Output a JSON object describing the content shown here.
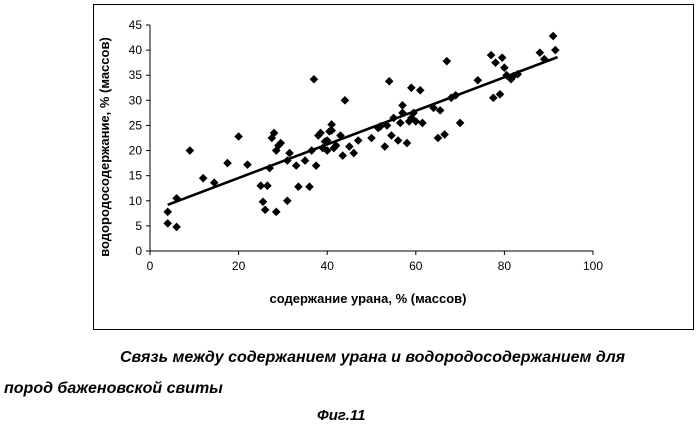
{
  "chart_data": {
    "type": "scatter",
    "title": "",
    "xlabel": "содержание урана, % (массов)",
    "ylabel": "водородосодержание, % (массов)",
    "xlim": [
      0,
      100
    ],
    "ylim": [
      0,
      45
    ],
    "xticks": [
      "0",
      "20",
      "40",
      "60",
      "80",
      "100"
    ],
    "yticks": [
      "0",
      "5",
      "10",
      "15",
      "20",
      "25",
      "30",
      "35",
      "40",
      "45"
    ],
    "grid": false,
    "legend": "none",
    "marker": "diamond",
    "marker_color": "#000000",
    "trendline": {
      "type": "linear",
      "x": [
        4,
        92
      ],
      "y": [
        9.2,
        38.6
      ],
      "color": "#000000"
    },
    "points": [
      [
        4,
        7.8
      ],
      [
        4,
        5.5
      ],
      [
        6,
        10.5
      ],
      [
        6,
        4.8
      ],
      [
        9,
        20
      ],
      [
        12,
        14.5
      ],
      [
        14.5,
        13.6
      ],
      [
        17.5,
        17.5
      ],
      [
        20,
        22.8
      ],
      [
        22,
        17.2
      ],
      [
        25,
        13
      ],
      [
        25.5,
        9.8
      ],
      [
        26,
        8.2
      ],
      [
        26.5,
        13
      ],
      [
        27,
        16.5
      ],
      [
        27.5,
        22.5
      ],
      [
        28,
        23.5
      ],
      [
        28.5,
        20
      ],
      [
        29,
        21
      ],
      [
        28.5,
        7.8
      ],
      [
        29.5,
        21.5
      ],
      [
        31,
        18
      ],
      [
        31.5,
        19.5
      ],
      [
        31,
        10
      ],
      [
        33,
        17
      ],
      [
        33.5,
        12.8
      ],
      [
        35,
        18
      ],
      [
        36,
        12.8
      ],
      [
        36.5,
        20
      ],
      [
        37.5,
        17
      ],
      [
        37,
        34.2
      ],
      [
        38,
        23
      ],
      [
        38.5,
        23.5
      ],
      [
        39,
        20.5
      ],
      [
        39.5,
        21.8
      ],
      [
        40,
        22
      ],
      [
        40.5,
        23.8
      ],
      [
        41,
        25.2
      ],
      [
        41,
        24
      ],
      [
        40,
        20
      ],
      [
        41.5,
        20.5
      ],
      [
        42,
        21
      ],
      [
        43,
        23
      ],
      [
        43.5,
        19
      ],
      [
        44,
        30
      ],
      [
        45,
        20.8
      ],
      [
        46,
        19.5
      ],
      [
        47,
        22
      ],
      [
        50,
        22.5
      ],
      [
        51.5,
        24.5
      ],
      [
        52,
        24.8
      ],
      [
        53,
        20.8
      ],
      [
        53.5,
        25
      ],
      [
        54,
        33.8
      ],
      [
        54.5,
        23
      ],
      [
        55,
        26.5
      ],
      [
        56,
        22
      ],
      [
        56.5,
        25.5
      ],
      [
        57,
        27.5
      ],
      [
        57,
        29
      ],
      [
        58,
        21.5
      ],
      [
        58.5,
        25.8
      ],
      [
        59,
        26.5
      ],
      [
        59,
        32.5
      ],
      [
        59.5,
        27.5
      ],
      [
        60,
        25.8
      ],
      [
        61,
        32
      ],
      [
        61.5,
        25.5
      ],
      [
        64,
        28.5
      ],
      [
        65,
        22.5
      ],
      [
        65.5,
        28
      ],
      [
        66.5,
        23.2
      ],
      [
        67,
        37.8
      ],
      [
        68,
        30.5
      ],
      [
        69,
        31
      ],
      [
        70,
        25.5
      ],
      [
        74,
        34
      ],
      [
        77,
        39
      ],
      [
        77.5,
        30.5
      ],
      [
        78,
        37.5
      ],
      [
        79,
        31.2
      ],
      [
        79.5,
        38.5
      ],
      [
        80,
        36.5
      ],
      [
        80.5,
        35
      ],
      [
        81.5,
        34.2
      ],
      [
        82,
        34.8
      ],
      [
        83,
        35.2
      ],
      [
        88,
        39.5
      ],
      [
        89,
        38.2
      ],
      [
        91,
        42.8
      ],
      [
        91.5,
        40
      ]
    ]
  },
  "caption": {
    "line1": "Связь между содержанием урана и водородосодержанием для",
    "line2": "пород баженовской свиты",
    "figure": "Фиг.11"
  }
}
